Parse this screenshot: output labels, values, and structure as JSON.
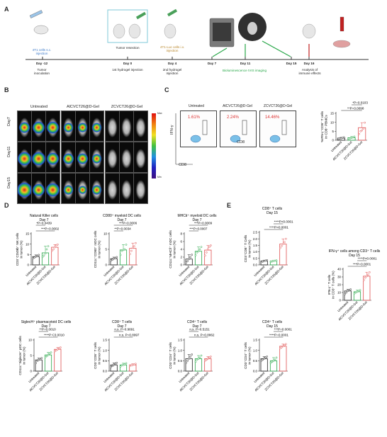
{
  "panels": {
    "A": "A",
    "B": "B",
    "C": "C",
    "D": "D",
    "E": "E"
  },
  "timeline": {
    "events": [
      {
        "day": "Day -12",
        "above": "4T1 cells s.c. injection",
        "below": "Tumor inoculation",
        "above_color": "#3a78c8"
      },
      {
        "day": "Day 0",
        "above": "Tumor resection",
        "below": "1st hydrogel injection",
        "above_color": "#222222"
      },
      {
        "day": "Day 4",
        "above": "4T1-Luc cells i.v. injection",
        "below": "2nd hydrogel injection",
        "above_color": "#b8862a"
      },
      {
        "day": "Day 7",
        "above": "",
        "below": "",
        "above_color": "#222222"
      },
      {
        "day": "Day 11",
        "above": "",
        "below": "",
        "above_color": "#222222"
      },
      {
        "day": "Day 15",
        "above": "",
        "below": "",
        "above_color": "#222222"
      },
      {
        "day": "Day 16",
        "above": "",
        "below": "Analysis of immune effects",
        "above_color": "#222222"
      }
    ],
    "imaging_label": "Bioluminescence IVIS imaging"
  },
  "ivis": {
    "groups": [
      "Untreated",
      "AlCVₑₜ₂₈@D-Gel",
      "ZCVₑₜ₂₈@D-Gel"
    ],
    "group_labels": [
      "Untreated",
      "AlCVCT26@D-Gel",
      "ZCVCT26@D-Gel"
    ],
    "days": [
      "Day7",
      "Day11",
      "Day15"
    ],
    "scale_max": "Max",
    "scale_min": "Min"
  },
  "flow": {
    "groups": [
      "Untreated",
      "AlCVCT26@D-Gel",
      "ZCVCT26@D-Gel"
    ],
    "percents": [
      "1.61%",
      "2.24%",
      "14.46%"
    ],
    "y_axis": "IFN-γ",
    "x_axis": "CD8",
    "inner_label": "CD8"
  },
  "chart_data": [
    {
      "id": "C_ifng_cd8",
      "type": "bar",
      "title": "",
      "ylabel": "%IFN-γ⁺CD8⁺ T cells in CD8⁺ PBMCs",
      "categories": [
        "Untreated",
        "AlCVCT26@D-Gel",
        "ZCVCT26@D-Gel"
      ],
      "values": [
        1.2,
        1.4,
        7.0
      ],
      "points": [
        [
          0.8,
          1.0,
          1.1,
          1.3,
          1.6
        ],
        [
          0.9,
          1.1,
          1.3,
          1.6,
          2.0
        ],
        [
          3.5,
          5.0,
          5.5,
          6.5,
          9.8
        ]
      ],
      "ylim": [
        0,
        15
      ],
      "yticks": [
        0,
        5,
        10,
        15
      ],
      "sig": [
        {
          "text": "**P=0.0098",
          "from": 0,
          "to": 2
        },
        {
          "text": "*P=0.0103",
          "from": 1,
          "to": 2
        }
      ]
    },
    {
      "id": "D_nk",
      "type": "bar",
      "title": "Natural Killer cells",
      "subtitle": "Day 7",
      "ylabel": "CD3⁻CD49b⁺ NK cells in tumor (%)",
      "categories": [
        "Untreated",
        "AlCVCT26@D-Gel",
        "ZCVCT26@D-Gel"
      ],
      "values": [
        4.0,
        5.8,
        8.5
      ],
      "points": [
        [
          3.2,
          3.6,
          4.0,
          4.3,
          4.8
        ],
        [
          3.8,
          4.5,
          5.5,
          7.5,
          9.0
        ],
        [
          6.8,
          7.5,
          8.5,
          9.5,
          9.8
        ]
      ],
      "ylim": [
        0,
        15
      ],
      "yticks": [
        0,
        5,
        10,
        15
      ],
      "sig": [
        {
          "text": "***P=0.0002",
          "from": 0,
          "to": 2
        },
        {
          "text": "*P=0.0439",
          "from": 0,
          "to": 1
        }
      ]
    },
    {
      "id": "D_cd80",
      "type": "bar",
      "title": "CD80⁺ myeloid DC cells",
      "subtitle": "Day 7",
      "ylabel": "CD11c⁺CD80⁺ mDC cells in tumor (%)",
      "categories": [
        "Untreated",
        "AlCVCT26@D-Gel",
        "ZCVCT26@D-Gel"
      ],
      "values": [
        2.0,
        4.8,
        5.3
      ],
      "points": [
        [
          1.4,
          1.7,
          2.0,
          2.2,
          2.5
        ],
        [
          3.2,
          4.5,
          4.8,
          5.0,
          6.5
        ],
        [
          3.5,
          4.5,
          5.5,
          6.0,
          7.0
        ]
      ],
      "ylim": [
        0,
        10
      ],
      "yticks": [
        0,
        5,
        10
      ],
      "sig": [
        {
          "text": "**P=0.0034",
          "from": 0,
          "to": 1
        },
        {
          "text": "***P=0.0006",
          "from": 0,
          "to": 2
        }
      ]
    },
    {
      "id": "D_mhc",
      "type": "bar",
      "title": "MHCⅡ⁺ myeloid DC cells",
      "subtitle": "Day 7",
      "ylabel": "CD11c⁺MHCⅡ⁺ mDC cells in tumor (%)",
      "categories": [
        "Untreated",
        "AlCVCT26@D-Gel",
        "ZCVCT26@D-Gel"
      ],
      "values": [
        1.5,
        3.5,
        3.8
      ],
      "points": [
        [
          0.6,
          1.0,
          1.5,
          2.0,
          2.6
        ],
        [
          2.5,
          3.2,
          3.5,
          4.0,
          4.6
        ],
        [
          2.4,
          3.2,
          4.0,
          4.6,
          5.0
        ]
      ],
      "ylim": [
        0,
        8
      ],
      "yticks": [
        0,
        2,
        4,
        6,
        8
      ],
      "sig": [
        {
          "text": "***P=0.0007",
          "from": 0,
          "to": 1
        },
        {
          "text": "***P=0.0009",
          "from": 0,
          "to": 2
        }
      ]
    },
    {
      "id": "D_siglech",
      "type": "bar",
      "title": "SiglecH⁺ plasmacytoid DC cells",
      "subtitle": "Day 7",
      "ylabel": "CD11c⁺SiglecH⁺ pDC cells in tumor (%)",
      "categories": [
        "Untreated",
        "AlCVCT26@D-Gel",
        "ZCVCT26@D-Gel"
      ],
      "values": [
        3.6,
        5.2,
        7.0
      ],
      "points": [
        [
          2.6,
          3.3,
          3.6,
          3.8,
          4.2
        ],
        [
          4.5,
          4.8,
          5.2,
          5.6,
          6.0
        ],
        [
          6.4,
          6.7,
          7.0,
          7.3,
          7.6
        ]
      ],
      "ylim": [
        0,
        10
      ],
      "yticks": [
        0,
        5,
        10
      ],
      "sig": [
        {
          "text": "****P＜0.0010",
          "from": 0,
          "to": 2
        },
        {
          "text": "**P=0.0010",
          "from": 0,
          "to": 1
        }
      ]
    },
    {
      "id": "D_cd8",
      "type": "bar",
      "title": "CD8⁺ T cells",
      "subtitle": "Day 7",
      "ylabel": "CD3⁺CD8⁺ T cells in tumor (%)",
      "categories": [
        "Untreated",
        "AlCVCT26@D-Gel",
        "ZCVCT26@D-Gel"
      ],
      "values": [
        0.3,
        0.3,
        0.3
      ],
      "points": [
        [
          0.2,
          0.25,
          0.3,
          0.35,
          0.4
        ],
        [
          0.22,
          0.28,
          0.3,
          0.33,
          0.38
        ],
        [
          0.25,
          0.28,
          0.3,
          0.32,
          0.35
        ]
      ],
      "ylim": [
        0,
        1.5
      ],
      "yticks": [
        0.0,
        0.5,
        1.0,
        1.5
      ],
      "sig": [
        {
          "text": "n.s. P=0.8997",
          "from": 0,
          "to": 2
        },
        {
          "text": "n.s. P=0.9891",
          "from": 0,
          "to": 1
        }
      ]
    },
    {
      "id": "D_cd4",
      "type": "bar",
      "title": "CD4⁺ T cells",
      "subtitle": "Day 7",
      "ylabel": "CD3⁺CD4⁺ T cells in tumor (%)",
      "categories": [
        "Untreated",
        "AlCVCT26@D-Gel",
        "ZCVCT26@D-Gel"
      ],
      "values": [
        0.6,
        0.6,
        0.6
      ],
      "points": [
        [
          0.4,
          0.5,
          0.6,
          0.7,
          0.8
        ],
        [
          0.45,
          0.55,
          0.6,
          0.65,
          0.75
        ],
        [
          0.5,
          0.55,
          0.6,
          0.65,
          0.7
        ]
      ],
      "ylim": [
        0,
        1.5
      ],
      "yticks": [
        0.0,
        0.5,
        1.0,
        1.5
      ],
      "sig": [
        {
          "text": "n.s. P=0.8862",
          "from": 0,
          "to": 2
        },
        {
          "text": "n.s. P=0.5151",
          "from": 0,
          "to": 1
        }
      ]
    },
    {
      "id": "E_cd8",
      "type": "bar",
      "title": "CD8⁺ T cells",
      "subtitle": "Day 15",
      "ylabel": "CD3⁺CD8⁺ T Cells in tumor (%)",
      "categories": [
        "Untreated",
        "AlCVCT26@D-Gel",
        "ZCVCT26@D-Gel"
      ],
      "values": [
        0.3,
        0.3,
        1.6
      ],
      "points": [
        [
          0.22,
          0.26,
          0.3,
          0.33,
          0.36
        ],
        [
          0.24,
          0.27,
          0.3,
          0.32,
          0.34
        ],
        [
          1.3,
          1.45,
          1.6,
          1.75,
          2.0
        ]
      ],
      "ylim": [
        0,
        2.5
      ],
      "yticks": [
        0.0,
        0.5,
        1.0,
        1.5,
        2.0,
        2.5
      ],
      "sig": [
        {
          "text": "****P<0.0001",
          "from": 0,
          "to": 2
        },
        {
          "text": "****P<0.0001",
          "from": 1,
          "to": 2
        }
      ]
    },
    {
      "id": "E_ifng",
      "type": "bar",
      "title": "IFN-γ⁺ cells among CD3⁺ T cells",
      "subtitle": "Day 15",
      "ylabel": "IFN-γ⁺ T cells in CD3⁺ T cells (%)",
      "categories": [
        "Untreated",
        "AlCVCT26@D-Gel",
        "ZCVCT26@D-Gel"
      ],
      "values": [
        12,
        11,
        31
      ],
      "points": [
        [
          8,
          10,
          12,
          13,
          14
        ],
        [
          9,
          10,
          11,
          12,
          13
        ],
        [
          26,
          29,
          31,
          33,
          36
        ]
      ],
      "ylim": [
        0,
        40
      ],
      "yticks": [
        0,
        10,
        20,
        30,
        40
      ],
      "sig": [
        {
          "text": "***P=0.0001",
          "from": 0,
          "to": 2
        },
        {
          "text": "****P<0.0001",
          "from": 1,
          "to": 2
        }
      ]
    },
    {
      "id": "E_cd4",
      "type": "bar",
      "title": "CD4⁺ T cells",
      "subtitle": "Day 15",
      "ylabel": "CD3⁺CD4⁺ T cells in tumor (%)",
      "categories": [
        "Untreated",
        "AlCVCT26@D-Gel",
        "ZCVCT26@D-Gel"
      ],
      "values": [
        0.6,
        0.5,
        1.2
      ],
      "points": [
        [
          0.5,
          0.55,
          0.6,
          0.65,
          0.7
        ],
        [
          0.4,
          0.45,
          0.5,
          0.55,
          0.65
        ],
        [
          1.1,
          1.15,
          1.2,
          1.25,
          1.3
        ]
      ],
      "ylim": [
        0,
        1.5
      ],
      "yticks": [
        0.0,
        0.5,
        1.0,
        1.5
      ],
      "sig": [
        {
          "text": "****P=0.0001",
          "from": 0,
          "to": 2
        },
        {
          "text": "***P=0.0001",
          "from": 1,
          "to": 2
        }
      ]
    }
  ],
  "colors": {
    "untreated": "#222222",
    "alcv": "#2aa84a",
    "zcv": "#e05050",
    "timeline_green": "#2aa84a"
  }
}
